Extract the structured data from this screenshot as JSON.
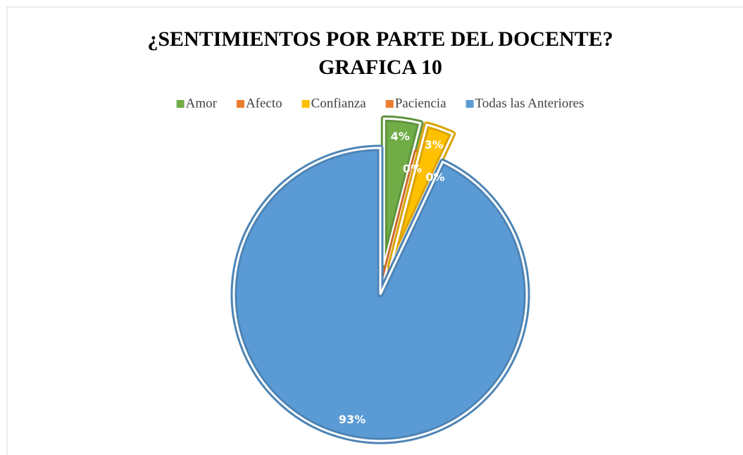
{
  "chart_data": {
    "type": "pie",
    "title": "¿SENTIMIENTOS POR PARTE DEL DOCENTE?",
    "subtitle": "GRAFICA 10",
    "categories": [
      "Amor",
      "Afecto",
      "Confianza",
      "Paciencia",
      "Todas las Anteriores"
    ],
    "values": [
      4,
      0,
      3,
      0,
      93
    ],
    "value_labels": [
      "4%",
      "0%",
      "3%",
      "0%",
      "93%"
    ],
    "colors": [
      "#70ad47",
      "#ed7d31",
      "#ffc000",
      "#ed7d31",
      "#5b9bd5"
    ],
    "exploded": [
      true,
      false,
      true,
      false,
      false
    ],
    "legend": "top"
  }
}
